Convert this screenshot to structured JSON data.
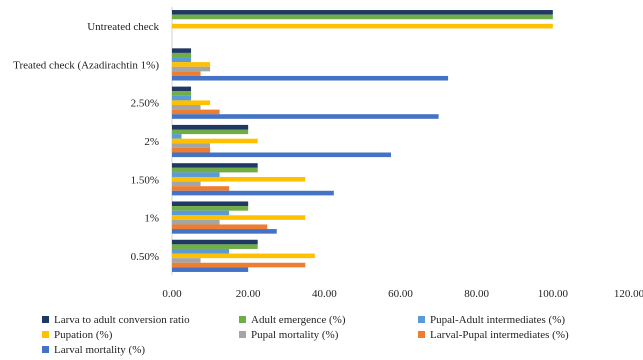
{
  "chart_data": {
    "type": "bar",
    "orientation": "horizontal",
    "title": "",
    "xlabel": "",
    "ylabel": "",
    "xlim": [
      0,
      120
    ],
    "x_ticks": [
      "0.00",
      "20.00",
      "40.00",
      "60.00",
      "80.00",
      "100.00",
      "120.00"
    ],
    "categories": [
      "Untreated check",
      "Treated check (Azadirachtin 1%)",
      "2.50%",
      "2%",
      "1.50%",
      "1%",
      "0.50%"
    ],
    "series": [
      {
        "name": "Larva to adult conversion ratio",
        "color": "#203864",
        "values": [
          100,
          5,
          5,
          20,
          22.5,
          20,
          22.5
        ]
      },
      {
        "name": "Adult emergence (%)",
        "color": "#70AD47",
        "values": [
          100,
          5,
          5,
          20,
          22.5,
          20,
          22.5
        ]
      },
      {
        "name": "Pupal-Adult intermediates (%)",
        "color": "#5B9BD5",
        "values": [
          0,
          5,
          5,
          2.5,
          12.5,
          15,
          15
        ]
      },
      {
        "name": "Pupation (%)",
        "color": "#FFC000",
        "values": [
          100,
          10,
          10,
          22.5,
          35,
          35,
          37.5
        ]
      },
      {
        "name": "Pupal mortality (%)",
        "color": "#A5A5A5",
        "values": [
          0,
          10,
          7.5,
          10,
          7.5,
          12.5,
          7.5
        ]
      },
      {
        "name": "Larval-Pupal intermediates (%)",
        "color": "#ED7D31",
        "values": [
          0,
          7.5,
          12.5,
          10,
          15,
          25,
          35
        ]
      },
      {
        "name": "Larval mortality (%)",
        "color": "#4472C4",
        "values": [
          0,
          72.5,
          70,
          57.5,
          42.5,
          27.5,
          20
        ]
      }
    ],
    "grid": false,
    "legend_position": "bottom"
  }
}
